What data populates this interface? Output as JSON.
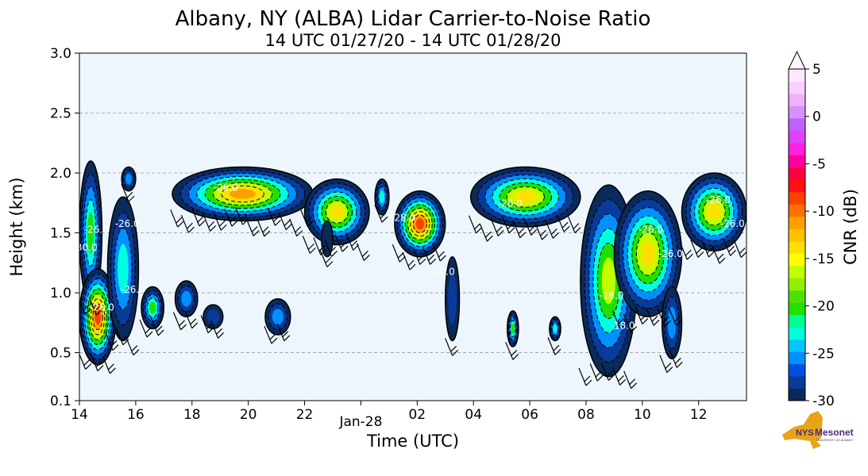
{
  "chart_data": {
    "type": "heatmap",
    "title": "Albany, NY (ALBA) Lidar Carrier-to-Noise Ratio",
    "subtitle": "14 UTC 01/27/20 - 14 UTC 01/28/20",
    "xlabel": "Time (UTC)",
    "ylabel": "Height (km)",
    "x_ticks": [
      {
        "x": 14,
        "label": "14"
      },
      {
        "x": 16,
        "label": "16"
      },
      {
        "x": 18,
        "label": "18"
      },
      {
        "x": 20,
        "label": "20"
      },
      {
        "x": 22,
        "label": "22"
      },
      {
        "x": 24,
        "label": "Jan-28"
      },
      {
        "x": 26,
        "label": "02"
      },
      {
        "x": 28,
        "label": "04"
      },
      {
        "x": 30,
        "label": "06"
      },
      {
        "x": 32,
        "label": "08"
      },
      {
        "x": 34,
        "label": "10"
      },
      {
        "x": 36,
        "label": "12"
      }
    ],
    "xlim": [
      14,
      37.7
    ],
    "y_ticks": [
      {
        "y": 0.1,
        "label": "0.1"
      },
      {
        "y": 0.5,
        "label": "0.5"
      },
      {
        "y": 1.0,
        "label": "1.0"
      },
      {
        "y": 1.5,
        "label": "1.5"
      },
      {
        "y": 2.0,
        "label": "2.0"
      },
      {
        "y": 2.5,
        "label": "2.5"
      },
      {
        "y": 3.0,
        "label": "3.0"
      }
    ],
    "ylim": [
      0.1,
      3.0
    ],
    "grid": "horizontal dashed",
    "background_color": "#eef6fd",
    "colorbar": {
      "label": "CNR (dB)",
      "range": [
        -30,
        5
      ],
      "ticks": [
        "5",
        "0",
        "-5",
        "-10",
        "-15",
        "-20",
        "-25",
        "-30"
      ],
      "tick_values": [
        5,
        0,
        -5,
        -10,
        -15,
        -20,
        -25,
        -30
      ],
      "colors": [
        "#0a2a5a",
        "#0a3a9a",
        "#0050e0",
        "#0090ff",
        "#00c8ff",
        "#00ffe0",
        "#00ff90",
        "#20e000",
        "#50e000",
        "#90f000",
        "#c0ff00",
        "#ffff00",
        "#ffe000",
        "#ffc000",
        "#ffa000",
        "#ff7000",
        "#ff4000",
        "#ff1010",
        "#ff0040",
        "#ff00a0",
        "#ff20e0",
        "#e040ff",
        "#c060ff",
        "#d890ff",
        "#f0b0ff",
        "#f8d0ff",
        "#fde8ff"
      ]
    },
    "contour_labels": [
      "-26.0",
      "-26.0",
      "-26.0",
      "-26.0",
      "-26.0",
      "-30.0",
      "-30.0",
      "-28.0",
      "-26.0",
      "-18.0",
      "-26.0",
      "-26.0",
      "-26.0",
      "-27.0",
      "-26.0",
      "-18.0"
    ],
    "clouds": [
      {
        "x": [
          14.0,
          14.8
        ],
        "y": [
          0.9,
          2.1
        ],
        "peak": -20
      },
      {
        "x": [
          14.0,
          15.3
        ],
        "y": [
          0.4,
          1.2
        ],
        "peak": -8
      },
      {
        "x": [
          15.0,
          16.1
        ],
        "y": [
          0.6,
          1.8
        ],
        "peak": -22
      },
      {
        "x": [
          15.5,
          16.0
        ],
        "y": [
          1.85,
          2.05
        ],
        "peak": -24
      },
      {
        "x": [
          16.2,
          17.0
        ],
        "y": [
          0.7,
          1.05
        ],
        "peak": -20
      },
      {
        "x": [
          17.4,
          18.2
        ],
        "y": [
          0.8,
          1.1
        ],
        "peak": -24
      },
      {
        "x": [
          18.4,
          19.1
        ],
        "y": [
          0.7,
          0.9
        ],
        "peak": -27
      },
      {
        "x": [
          17.3,
          22.3
        ],
        "y": [
          1.6,
          2.05
        ],
        "peak": -10
      },
      {
        "x": [
          22.0,
          24.3
        ],
        "y": [
          1.4,
          1.95
        ],
        "peak": -12
      },
      {
        "x": [
          20.6,
          21.5
        ],
        "y": [
          0.65,
          0.95
        ],
        "peak": -24
      },
      {
        "x": [
          22.6,
          23.0
        ],
        "y": [
          1.3,
          1.6
        ],
        "peak": -28
      },
      {
        "x": [
          24.5,
          25.0
        ],
        "y": [
          1.65,
          1.95
        ],
        "peak": -22
      },
      {
        "x": [
          25.2,
          27.0
        ],
        "y": [
          1.3,
          1.85
        ],
        "peak": -6
      },
      {
        "x": [
          27.0,
          27.5
        ],
        "y": [
          0.6,
          1.3
        ],
        "peak": -27
      },
      {
        "x": [
          27.9,
          31.8
        ],
        "y": [
          1.55,
          2.05
        ],
        "peak": -12
      },
      {
        "x": [
          31.8,
          33.8
        ],
        "y": [
          0.3,
          1.9
        ],
        "peak": -17
      },
      {
        "x": [
          33.0,
          35.4
        ],
        "y": [
          0.8,
          1.85
        ],
        "peak": -12
      },
      {
        "x": [
          34.7,
          35.4
        ],
        "y": [
          0.45,
          1.05
        ],
        "peak": -24
      },
      {
        "x": [
          35.4,
          37.7
        ],
        "y": [
          1.35,
          2.0
        ],
        "peak": -14
      },
      {
        "x": [
          29.2,
          29.6
        ],
        "y": [
          0.55,
          0.85
        ],
        "peak": -20
      },
      {
        "x": [
          30.7,
          31.1
        ],
        "y": [
          0.6,
          0.8
        ],
        "peak": -23
      }
    ]
  },
  "logo": {
    "text": "NYS",
    "brand": "Mesonet",
    "sub": "UNIVERSITY AT ALBANY"
  }
}
